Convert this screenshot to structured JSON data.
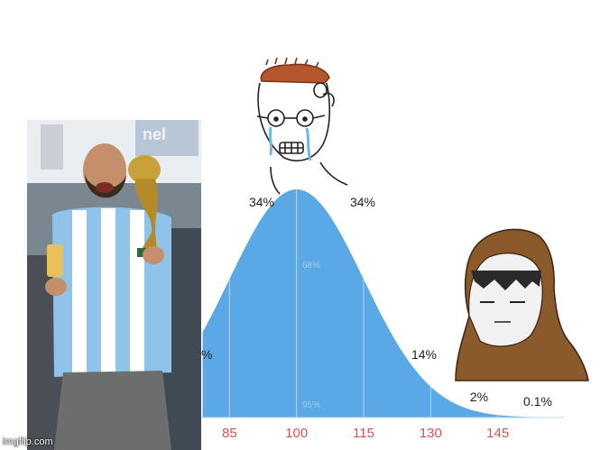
{
  "meme": {
    "watermark": "imgflip.com"
  },
  "chart_data": {
    "type": "area",
    "x_ticks": [
      85,
      100,
      115,
      130,
      145
    ],
    "region_labels": [
      {
        "text": "34%"
      },
      {
        "text": "34%"
      },
      {
        "text": "14%"
      },
      {
        "text": "2%"
      },
      {
        "text": "0.1%"
      },
      {
        "text": "%"
      }
    ],
    "band_labels": [
      {
        "text": "68%"
      },
      {
        "text": "95%"
      }
    ],
    "colors": {
      "curve_fill": "#5aa9e6",
      "band_label": "#aacbe6",
      "axis_label": "#d9534f",
      "region_label": "#222222"
    }
  }
}
